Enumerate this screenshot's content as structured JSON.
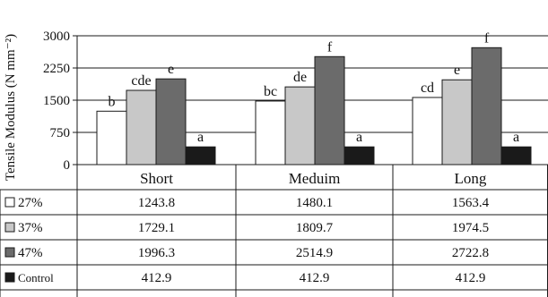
{
  "chart_data": {
    "type": "bar",
    "ylabel": "Tensile Modulus (N mm⁻²)",
    "ylim": [
      0,
      3000
    ],
    "yticks": [
      0,
      750,
      1500,
      2250,
      3000
    ],
    "ytick_labels": [
      "0",
      "750",
      "1500",
      "2250",
      "3000"
    ],
    "categories": [
      "Short",
      "Meduim",
      "Long"
    ],
    "series": [
      {
        "name": "27%",
        "values": [
          1243.8,
          1480.1,
          1563.4
        ],
        "value_labels": [
          "1243.8",
          "1480.1",
          "1563.4"
        ],
        "letters": [
          "b",
          "bc",
          "cd"
        ],
        "fill": "#ffffff"
      },
      {
        "name": "37%",
        "values": [
          1729.1,
          1809.7,
          1974.5
        ],
        "value_labels": [
          "1729.1",
          "1809.7",
          "1974.5"
        ],
        "letters": [
          "cde",
          "de",
          "e"
        ],
        "fill": "#c8c8c8"
      },
      {
        "name": "47%",
        "values": [
          1996.3,
          2514.9,
          2722.8
        ],
        "value_labels": [
          "1996.3",
          "2514.9",
          "2722.8"
        ],
        "letters": [
          "e",
          "f",
          "f"
        ],
        "fill": "#6b6b6b"
      },
      {
        "name": "Control",
        "values": [
          412.9,
          412.9,
          412.9
        ],
        "value_labels": [
          "412.9",
          "412.9",
          "412.9"
        ],
        "letters": [
          "a",
          "a",
          "a"
        ],
        "fill": "#1a1a1a"
      }
    ],
    "gridlines": true,
    "legend": "data table below chart"
  }
}
